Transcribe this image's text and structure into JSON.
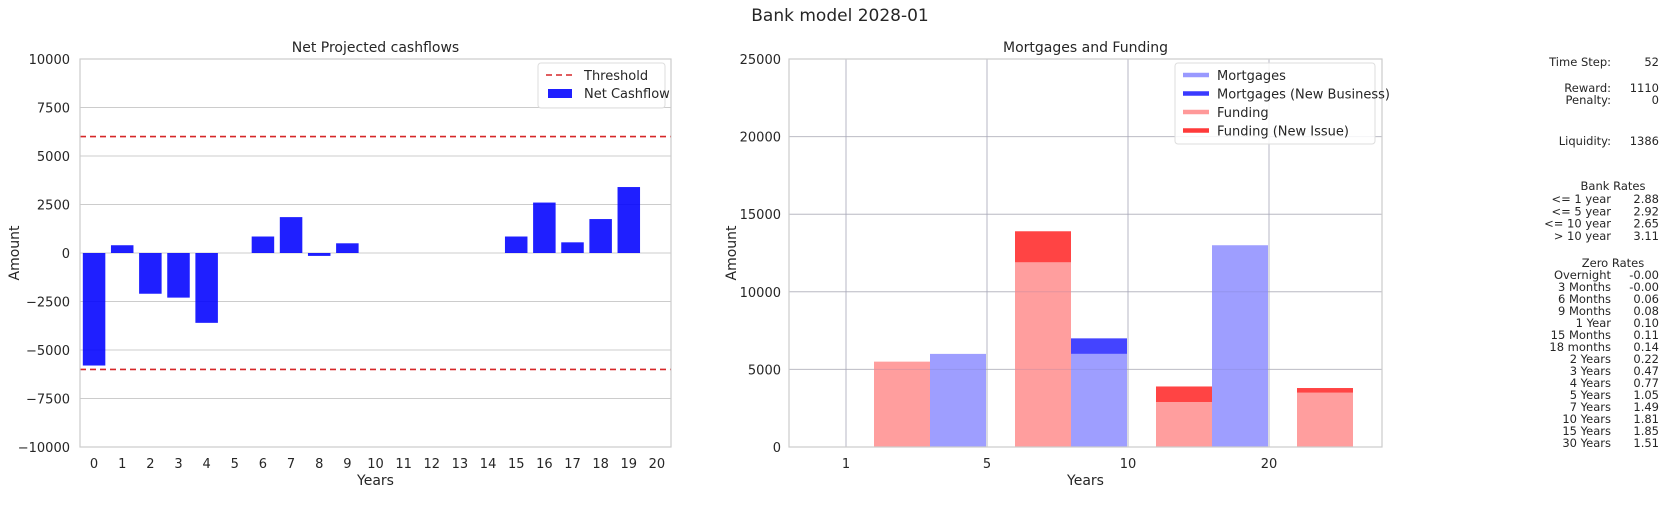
{
  "suptitle": "Bank model 2028-01",
  "chart_data": [
    {
      "type": "bar",
      "title": "Net Projected cashflows",
      "xlabel": "Years",
      "ylabel": "Amount",
      "ylim": [
        -10000,
        10000
      ],
      "yticks": [
        -10000,
        -7500,
        -5000,
        -2500,
        0,
        2500,
        5000,
        7500,
        10000
      ],
      "ytick_labels": [
        "−10000",
        "−7500",
        "−5000",
        "−2500",
        "0",
        "2500",
        "5000",
        "7500",
        "10000"
      ],
      "categories": [
        "0",
        "1",
        "2",
        "3",
        "4",
        "5",
        "6",
        "7",
        "8",
        "9",
        "10",
        "11",
        "12",
        "13",
        "14",
        "15",
        "16",
        "17",
        "18",
        "19",
        "20"
      ],
      "series": [
        {
          "name": "Net Cashflow",
          "color": "#0000ff",
          "values": [
            -5800,
            400,
            -2100,
            -2300,
            -3600,
            0,
            850,
            1850,
            -150,
            500,
            0,
            0,
            0,
            0,
            0,
            850,
            2600,
            550,
            1750,
            3400,
            0
          ]
        }
      ],
      "thresholds": [
        6000,
        -6000
      ],
      "threshold_label": "Threshold",
      "threshold_color": "#d62728",
      "grid": true,
      "legend": "top-right"
    },
    {
      "type": "bar",
      "title": "Mortgages and Funding",
      "xlabel": "Years",
      "ylabel": "Amount",
      "ylim": [
        0,
        25000
      ],
      "yticks": [
        0,
        5000,
        10000,
        15000,
        20000,
        25000
      ],
      "ytick_labels": [
        "0",
        "5000",
        "10000",
        "15000",
        "20000",
        "25000"
      ],
      "categories": [
        "1",
        "5",
        "10",
        "20"
      ],
      "series": [
        {
          "name": "Mortgages",
          "color": "#9999ff",
          "values": [
            0,
            6000,
            6000,
            13000
          ]
        },
        {
          "name": "Mortgages (New Business)",
          "color": "#3a3aff",
          "values": [
            0,
            0,
            1000,
            0
          ]
        },
        {
          "name": "Funding",
          "color": "#ff9999",
          "values": [
            5500,
            11900,
            2900,
            3500
          ]
        },
        {
          "name": "Funding (New Issue)",
          "color": "#ff3a3a",
          "values": [
            0,
            2000,
            1000,
            300
          ]
        }
      ],
      "grid": true,
      "legend": "top-right"
    }
  ],
  "sidebar": {
    "time_step_label": "Time Step:",
    "time_step_value": "52",
    "reward_label": "Reward:",
    "reward_value": "1110",
    "penalty_label": "Penalty:",
    "penalty_value": "0",
    "liquidity_label": "Liquidity:",
    "liquidity_value": "1386",
    "bank_rates_title": "Bank Rates",
    "bank_rates": [
      {
        "label": "<= 1 year",
        "value": "2.88"
      },
      {
        "label": "<= 5 year",
        "value": "2.92"
      },
      {
        "label": "<= 10 year",
        "value": "2.65"
      },
      {
        "label": "> 10 year",
        "value": "3.11"
      }
    ],
    "zero_rates_title": "Zero Rates",
    "zero_rates": [
      {
        "label": "Overnight",
        "value": "-0.00"
      },
      {
        "label": "3 Months",
        "value": "-0.00"
      },
      {
        "label": "6 Months",
        "value": "0.06"
      },
      {
        "label": "9 Months",
        "value": "0.08"
      },
      {
        "label": "1 Year",
        "value": "0.10"
      },
      {
        "label": "15 Months",
        "value": "0.11"
      },
      {
        "label": "18 months",
        "value": "0.14"
      },
      {
        "label": "2 Years",
        "value": "0.22"
      },
      {
        "label": "3 Years",
        "value": "0.47"
      },
      {
        "label": "4 Years",
        "value": "0.77"
      },
      {
        "label": "5 Years",
        "value": "1.05"
      },
      {
        "label": "7 Years",
        "value": "1.49"
      },
      {
        "label": "10 Years",
        "value": "1.81"
      },
      {
        "label": "15 Years",
        "value": "1.85"
      },
      {
        "label": "30 Years",
        "value": "1.51"
      }
    ]
  }
}
